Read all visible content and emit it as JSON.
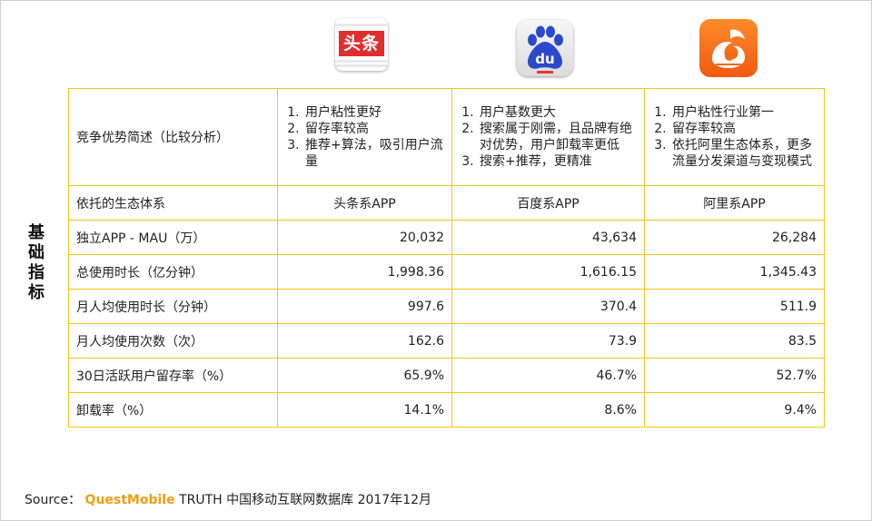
{
  "logos": {
    "toutiao": {
      "text": "头条",
      "color": "#e02d2d",
      "icon": "toutiao-icon"
    },
    "baidu": {
      "text": "du",
      "color": "#2b4acb",
      "icon": "baidu-paw-icon"
    },
    "uc": {
      "color": "#f26b1d",
      "icon": "uc-squirrel-icon"
    }
  },
  "side_label": "基础指标",
  "table": {
    "advantage_row": {
      "label": "竞争优势简述（比较分析）",
      "toutiao": [
        "用户粘性更好",
        "留存率较高",
        "推荐+算法，吸引用户流量"
      ],
      "baidu": [
        "用户基数更大",
        "搜索属于刚需，且品牌有绝对优势，用户卸载率更低",
        "搜索+推荐，更精准"
      ],
      "ali": [
        "用户粘性行业第一",
        "留存率较高",
        "依托阿里生态体系，更多流量分发渠道与变现模式"
      ]
    },
    "ecosystem_row": {
      "label": "依托的生态体系",
      "toutiao": "头条系APP",
      "baidu": "百度系APP",
      "ali": "阿里系APP"
    },
    "rows": [
      {
        "label": "独立APP - MAU（万）",
        "toutiao": "20,032",
        "baidu": "43,634",
        "ali": "26,284"
      },
      {
        "label": "总使用时长（亿分钟）",
        "toutiao": "1,998.36",
        "baidu": "1,616.15",
        "ali": "1,345.43"
      },
      {
        "label": "月人均使用时长（分钟）",
        "toutiao": "997.6",
        "baidu": "370.4",
        "ali": "511.9"
      },
      {
        "label": "月人均使用次数（次）",
        "toutiao": "162.6",
        "baidu": "73.9",
        "ali": "83.5"
      },
      {
        "label": "30日活跃用户留存率（%）",
        "toutiao": "65.9%",
        "baidu": "46.7%",
        "ali": "52.7%"
      },
      {
        "label": "卸载率（%）",
        "toutiao": "14.1%",
        "baidu": "8.6%",
        "ali": "9.4%"
      }
    ],
    "border_color": "#f5c518"
  },
  "source": {
    "prefix": "Source：",
    "brand": "QuestMobile",
    "rest": "TRUTH 中国移动互联网数据库 2017年12月",
    "brand_color": "#f39c12"
  }
}
